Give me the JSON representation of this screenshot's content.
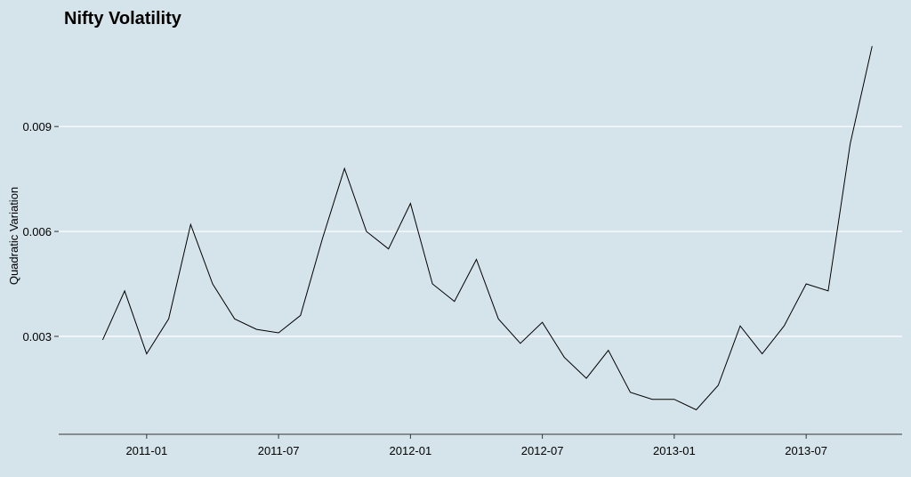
{
  "chart_data": {
    "type": "line",
    "title": "Nifty Volatility",
    "y_label": "Quadratic Variation",
    "x": [
      "2010-11",
      "2010-12",
      "2011-01",
      "2011-02",
      "2011-03",
      "2011-04",
      "2011-05",
      "2011-06",
      "2011-07",
      "2011-08",
      "2011-09",
      "2011-10",
      "2011-11",
      "2011-12",
      "2012-01",
      "2012-02",
      "2012-03",
      "2012-04",
      "2012-05",
      "2012-06",
      "2012-07",
      "2012-08",
      "2012-09",
      "2012-10",
      "2012-11",
      "2012-12",
      "2013-01",
      "2013-02",
      "2013-03",
      "2013-04",
      "2013-05",
      "2013-06",
      "2013-07",
      "2013-08",
      "2013-09",
      "2013-10"
    ],
    "series": [
      {
        "name": "Quadratic Variation",
        "color": "#000000",
        "values": [
          0.0029,
          0.0043,
          0.0025,
          0.0035,
          0.0062,
          0.0045,
          0.0035,
          0.0032,
          0.0031,
          0.0036,
          0.0058,
          0.0078,
          0.006,
          0.0055,
          0.0068,
          0.0045,
          0.004,
          0.0052,
          0.0035,
          0.0028,
          0.0034,
          0.0024,
          0.0018,
          0.0026,
          0.0014,
          0.0012,
          0.0012,
          0.0009,
          0.0016,
          0.0033,
          0.0025,
          0.0033,
          0.0045,
          0.0043,
          0.0085,
          0.0113
        ]
      }
    ],
    "xlim": [
      "2010-09",
      "2013-11"
    ],
    "xticks": [
      "2011-01",
      "2011-07",
      "2012-01",
      "2012-07",
      "2013-01",
      "2013-07"
    ],
    "ylim": [
      0.0002,
      0.0116
    ],
    "yticks": [
      0.003,
      0.006,
      0.009
    ],
    "grid": true
  }
}
